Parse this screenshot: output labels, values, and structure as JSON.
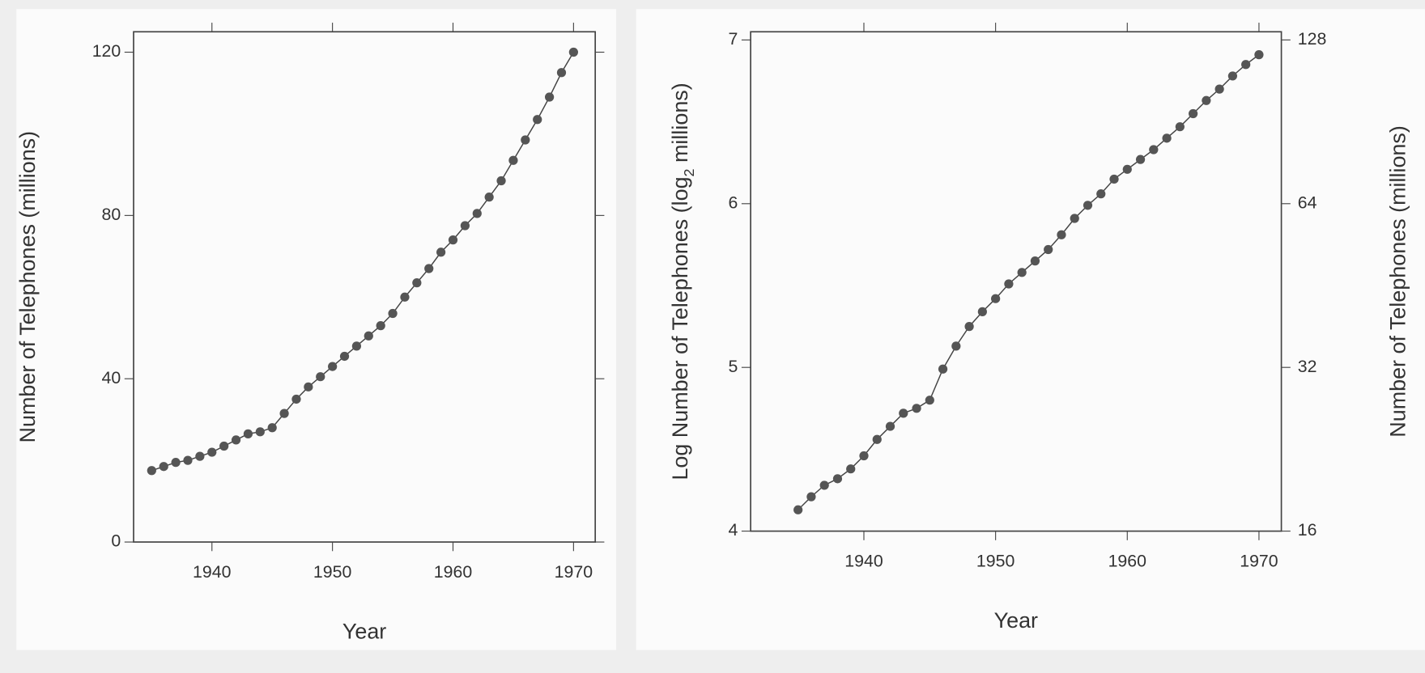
{
  "chart_data": [
    {
      "type": "line",
      "xlabel": "Year",
      "ylabel": "Number of Telephones (millions)",
      "x": [
        1935,
        1936,
        1937,
        1938,
        1939,
        1940,
        1941,
        1942,
        1943,
        1944,
        1945,
        1946,
        1947,
        1948,
        1949,
        1950,
        1951,
        1952,
        1953,
        1954,
        1955,
        1956,
        1957,
        1958,
        1959,
        1960,
        1961,
        1962,
        1963,
        1964,
        1965,
        1966,
        1967,
        1968,
        1969,
        1970
      ],
      "values": [
        17.5,
        18.5,
        19.5,
        20,
        21,
        22,
        23.5,
        25,
        26.5,
        27,
        28,
        31.5,
        35,
        38,
        40.5,
        43,
        45.5,
        48,
        50.5,
        53,
        56,
        60,
        63.5,
        67,
        71,
        74,
        77.5,
        80.5,
        84.5,
        88.5,
        93.5,
        98.5,
        103.5,
        109,
        115,
        120
      ],
      "color": "#555555",
      "xlim": [
        1933.5,
        1971.8
      ],
      "xticks": [
        1940,
        1950,
        1960,
        1970
      ],
      "ylim": [
        0,
        125
      ],
      "yticks": [
        0,
        40,
        80,
        120
      ]
    },
    {
      "type": "line",
      "xlabel": "Year",
      "ylabel_parts": [
        "Log Number of Telephones (log",
        "2",
        " millions)"
      ],
      "y2label": "Number of Telephones (millions)",
      "x": [
        1935,
        1936,
        1937,
        1938,
        1939,
        1940,
        1941,
        1942,
        1943,
        1944,
        1945,
        1946,
        1947,
        1948,
        1949,
        1950,
        1951,
        1952,
        1953,
        1954,
        1955,
        1956,
        1957,
        1958,
        1959,
        1960,
        1961,
        1962,
        1963,
        1964,
        1965,
        1966,
        1967,
        1968,
        1969,
        1970
      ],
      "values": [
        4.13,
        4.21,
        4.28,
        4.32,
        4.38,
        4.46,
        4.56,
        4.64,
        4.72,
        4.75,
        4.8,
        4.99,
        5.13,
        5.25,
        5.34,
        5.42,
        5.51,
        5.58,
        5.65,
        5.72,
        5.81,
        5.91,
        5.99,
        6.06,
        6.15,
        6.21,
        6.27,
        6.33,
        6.4,
        6.47,
        6.55,
        6.63,
        6.7,
        6.78,
        6.85,
        6.91
      ],
      "color": "#555555",
      "xlim": [
        1931.4,
        1971.7
      ],
      "xticks": [
        1940,
        1950,
        1960,
        1970
      ],
      "ylim": [
        4,
        7.05
      ],
      "yticks": [
        4,
        5,
        6,
        7
      ],
      "y2lim": [
        16,
        132.5
      ],
      "y2ticks": [
        16,
        32,
        64,
        128
      ],
      "y2log_base": 2
    }
  ]
}
